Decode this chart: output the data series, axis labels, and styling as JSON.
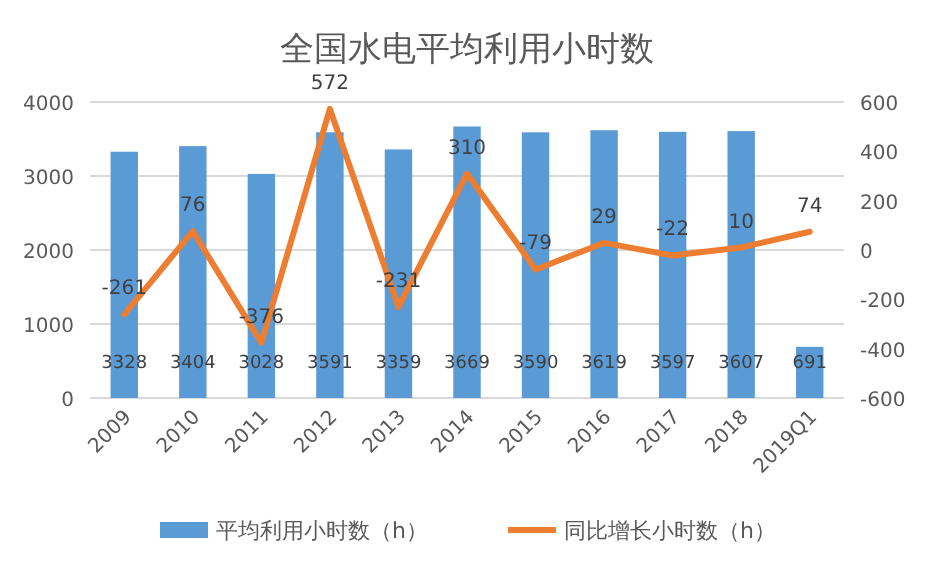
{
  "chart_data": {
    "type": "bar",
    "title": "全国水电平均利用小时数",
    "categories": [
      "2009",
      "2010",
      "2011",
      "2012",
      "2013",
      "2014",
      "2015",
      "2016",
      "2017",
      "2018",
      "2019Q1"
    ],
    "series": [
      {
        "name": "平均利用小时数（h）",
        "color": "#5b9bd5",
        "values": [
          3328,
          3404,
          3028,
          3591,
          3359,
          3669,
          3590,
          3619,
          3597,
          3607,
          691
        ]
      },
      {
        "name": "同比增长小时数（h）",
        "type": "line",
        "axis": "y2",
        "color": "#ed7d31",
        "values": [
          -261,
          76,
          -376,
          572,
          -231,
          310,
          -79,
          29,
          -22,
          10,
          74
        ]
      }
    ],
    "ylim": [
      0,
      4000
    ],
    "yticks": [
      0,
      1000,
      2000,
      3000,
      4000
    ],
    "y2lim": [
      -600,
      600
    ],
    "y2ticks": [
      -600,
      -400,
      -200,
      0,
      200,
      400,
      600
    ],
    "grid": "y",
    "legend": "bottom",
    "data_labels": true
  }
}
